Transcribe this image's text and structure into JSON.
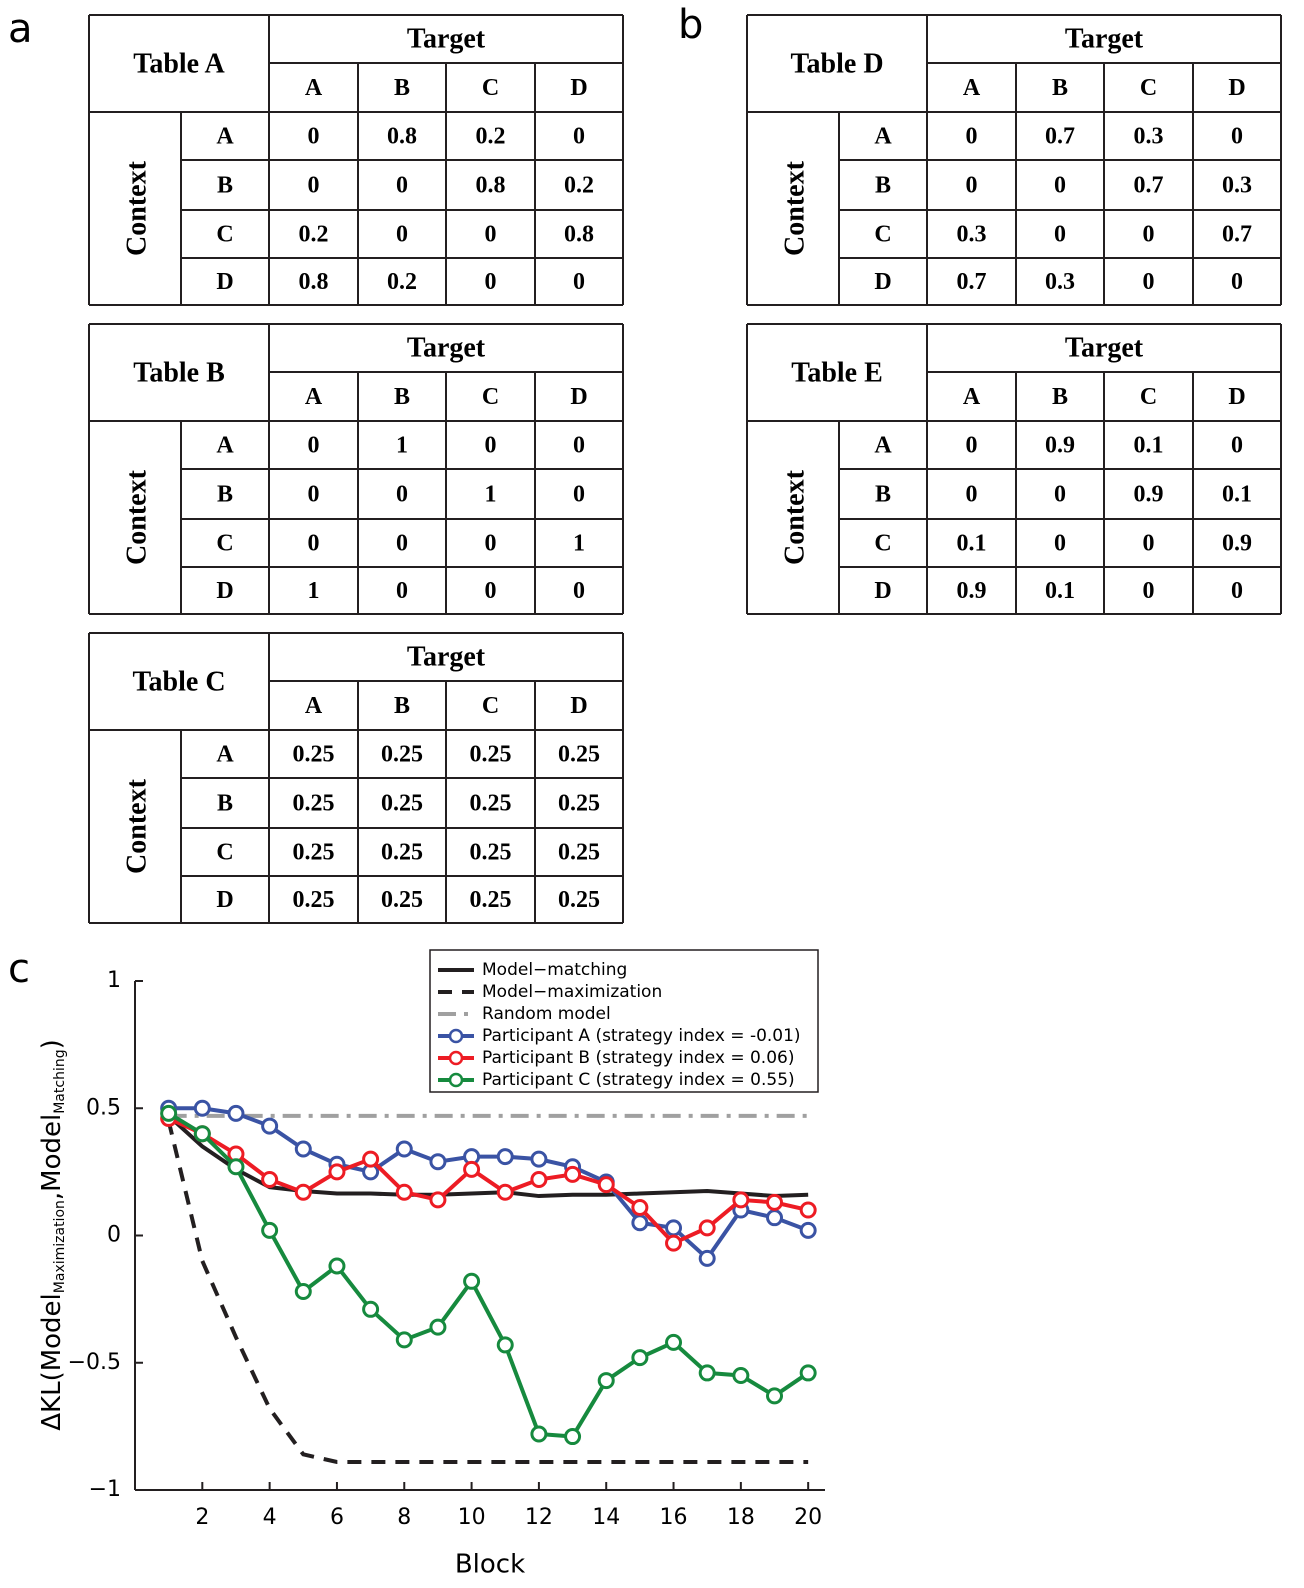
{
  "panel_labels": [
    "a",
    "b",
    "c"
  ],
  "tables": [
    {
      "title": "Table A",
      "column_header": "Target",
      "row_header": "Context",
      "columns": [
        "A",
        "B",
        "C",
        "D"
      ],
      "rows": [
        {
          "label": "A",
          "values": [
            0,
            0.8,
            0.2,
            0
          ]
        },
        {
          "label": "B",
          "values": [
            0,
            0,
            0.8,
            0.2
          ]
        },
        {
          "label": "C",
          "values": [
            0.2,
            0,
            0,
            0.8
          ]
        },
        {
          "label": "D",
          "values": [
            0.8,
            0.2,
            0,
            0
          ]
        }
      ]
    },
    {
      "title": "Table B",
      "column_header": "Target",
      "row_header": "Context",
      "columns": [
        "A",
        "B",
        "C",
        "D"
      ],
      "rows": [
        {
          "label": "A",
          "values": [
            0,
            1,
            0,
            0
          ]
        },
        {
          "label": "B",
          "values": [
            0,
            0,
            1,
            0
          ]
        },
        {
          "label": "C",
          "values": [
            0,
            0,
            0,
            1
          ]
        },
        {
          "label": "D",
          "values": [
            1,
            0,
            0,
            0
          ]
        }
      ]
    },
    {
      "title": "Table C",
      "column_header": "Target",
      "row_header": "Context",
      "columns": [
        "A",
        "B",
        "C",
        "D"
      ],
      "rows": [
        {
          "label": "A",
          "values": [
            0.25,
            0.25,
            0.25,
            0.25
          ]
        },
        {
          "label": "B",
          "values": [
            0.25,
            0.25,
            0.25,
            0.25
          ]
        },
        {
          "label": "C",
          "values": [
            0.25,
            0.25,
            0.25,
            0.25
          ]
        },
        {
          "label": "D",
          "values": [
            0.25,
            0.25,
            0.25,
            0.25
          ]
        }
      ]
    },
    {
      "title": "Table D",
      "column_header": "Target",
      "row_header": "Context",
      "columns": [
        "A",
        "B",
        "C",
        "D"
      ],
      "rows": [
        {
          "label": "A",
          "values": [
            0,
            0.7,
            0.3,
            0
          ]
        },
        {
          "label": "B",
          "values": [
            0,
            0,
            0.7,
            0.3
          ]
        },
        {
          "label": "C",
          "values": [
            0.3,
            0,
            0,
            0.7
          ]
        },
        {
          "label": "D",
          "values": [
            0.7,
            0.3,
            0,
            0
          ]
        }
      ]
    },
    {
      "title": "Table E",
      "column_header": "Target",
      "row_header": "Context",
      "columns": [
        "A",
        "B",
        "C",
        "D"
      ],
      "rows": [
        {
          "label": "A",
          "values": [
            0,
            0.9,
            0.1,
            0
          ]
        },
        {
          "label": "B",
          "values": [
            0,
            0,
            0.9,
            0.1
          ]
        },
        {
          "label": "C",
          "values": [
            0.1,
            0,
            0,
            0.9
          ]
        },
        {
          "label": "D",
          "values": [
            0.9,
            0.1,
            0,
            0
          ]
        }
      ]
    }
  ],
  "chart_data": {
    "type": "line",
    "x_label": "Block",
    "y_label": [
      "ΔKL(Model",
      "Maximization",
      ",Model",
      "Matching",
      ")"
    ],
    "x": [
      1,
      2,
      3,
      4,
      5,
      6,
      7,
      8,
      9,
      10,
      11,
      12,
      13,
      14,
      15,
      16,
      17,
      18,
      19,
      20
    ],
    "xlim": [
      0,
      20.5
    ],
    "xticks": [
      2,
      4,
      6,
      8,
      10,
      12,
      14,
      16,
      18,
      20
    ],
    "ylim": [
      -1,
      1
    ],
    "yticks": [
      1,
      0.5,
      0,
      {
        "value": -0.5,
        "label": "−0.5"
      },
      {
        "value": -1,
        "label": "−1"
      }
    ],
    "legend": "upper right",
    "series": [
      {
        "name": "Model−matching",
        "color": "#231f20",
        "dash": "solid",
        "marker": false,
        "values": [
          0.47,
          0.35,
          0.26,
          0.19,
          0.175,
          0.165,
          0.165,
          0.16,
          0.16,
          0.165,
          0.17,
          0.155,
          0.16,
          0.16,
          0.165,
          0.17,
          0.175,
          0.165,
          0.155,
          0.16
        ]
      },
      {
        "name": "Model−maximization",
        "color": "#231f20",
        "dash": "dashed",
        "marker": false,
        "values": [
          0.45,
          -0.1,
          -0.4,
          -0.68,
          -0.86,
          -0.89,
          -0.89,
          -0.89,
          -0.89,
          -0.89,
          -0.89,
          -0.89,
          -0.89,
          -0.89,
          -0.89,
          -0.89,
          -0.89,
          -0.89,
          -0.89,
          -0.89
        ]
      },
      {
        "name": "Random model",
        "color": "#a0a0a0",
        "dash": "dashdot",
        "marker": false,
        "values": [
          0.47,
          0.47,
          0.47,
          0.47,
          0.47,
          0.47,
          0.47,
          0.47,
          0.47,
          0.47,
          0.47,
          0.47,
          0.47,
          0.47,
          0.47,
          0.47,
          0.47,
          0.47,
          0.47,
          0.47
        ]
      },
      {
        "name": "Participant A (strategy index = -0.01)",
        "color": "#3a53a4",
        "dash": "solid",
        "marker": true,
        "values": [
          0.5,
          0.5,
          0.48,
          0.43,
          0.34,
          0.28,
          0.25,
          0.34,
          0.29,
          0.31,
          0.31,
          0.3,
          0.27,
          0.21,
          0.05,
          0.03,
          -0.09,
          0.1,
          0.07,
          0.02
        ]
      },
      {
        "name": "Participant B (strategy index = 0.06)",
        "color": "#ed1c24",
        "dash": "solid",
        "marker": true,
        "values": [
          0.46,
          0.4,
          0.32,
          0.22,
          0.17,
          0.25,
          0.3,
          0.17,
          0.14,
          0.26,
          0.17,
          0.22,
          0.24,
          0.2,
          0.11,
          -0.03,
          0.03,
          0.14,
          0.13,
          0.1
        ]
      },
      {
        "name": "Participant C (strategy index = 0.55)",
        "color": "#168a3e",
        "dash": "solid",
        "marker": true,
        "values": [
          0.48,
          0.4,
          0.27,
          0.02,
          -0.22,
          -0.12,
          -0.29,
          -0.41,
          -0.36,
          -0.18,
          -0.43,
          -0.78,
          -0.79,
          -0.57,
          -0.48,
          -0.42,
          -0.54,
          -0.55,
          -0.63,
          -0.54
        ]
      }
    ]
  }
}
